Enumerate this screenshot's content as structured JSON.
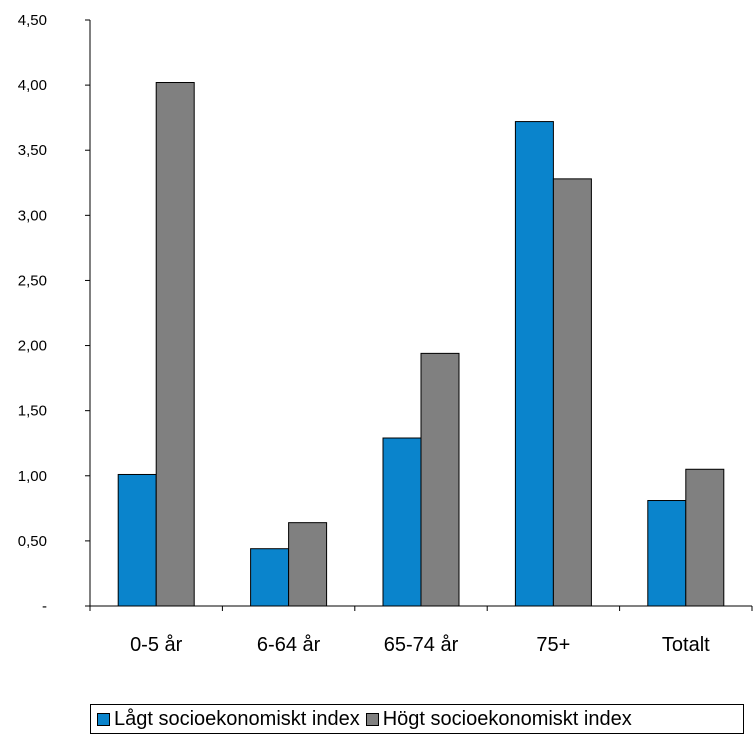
{
  "chart_data": {
    "type": "bar",
    "title": "",
    "xlabel": "",
    "ylabel": "",
    "categories": [
      "0-5 år",
      "6-64 år",
      "65-74 år",
      "75+",
      "Totalt"
    ],
    "series": [
      {
        "name": "Lågt socioekonomiskt index",
        "color": "#0a84cc",
        "values": [
          1.01,
          0.44,
          1.29,
          3.72,
          0.81
        ]
      },
      {
        "name": "Högt socioekonomiskt index",
        "color": "#808080",
        "values": [
          4.02,
          0.64,
          1.94,
          3.28,
          1.05
        ]
      }
    ],
    "ylim": [
      0,
      4.5
    ],
    "y_ticks": [
      {
        "value": 0,
        "label": "-"
      },
      {
        "value": 0.5,
        "label": "0,50"
      },
      {
        "value": 1.0,
        "label": "1,00"
      },
      {
        "value": 1.5,
        "label": "1,50"
      },
      {
        "value": 2.0,
        "label": "2,00"
      },
      {
        "value": 2.5,
        "label": "2,50"
      },
      {
        "value": 3.0,
        "label": "3,00"
      },
      {
        "value": 3.5,
        "label": "3,50"
      },
      {
        "value": 4.0,
        "label": "4,00"
      },
      {
        "value": 4.5,
        "label": "4,50"
      }
    ],
    "grid": false,
    "legend_position": "bottom"
  }
}
